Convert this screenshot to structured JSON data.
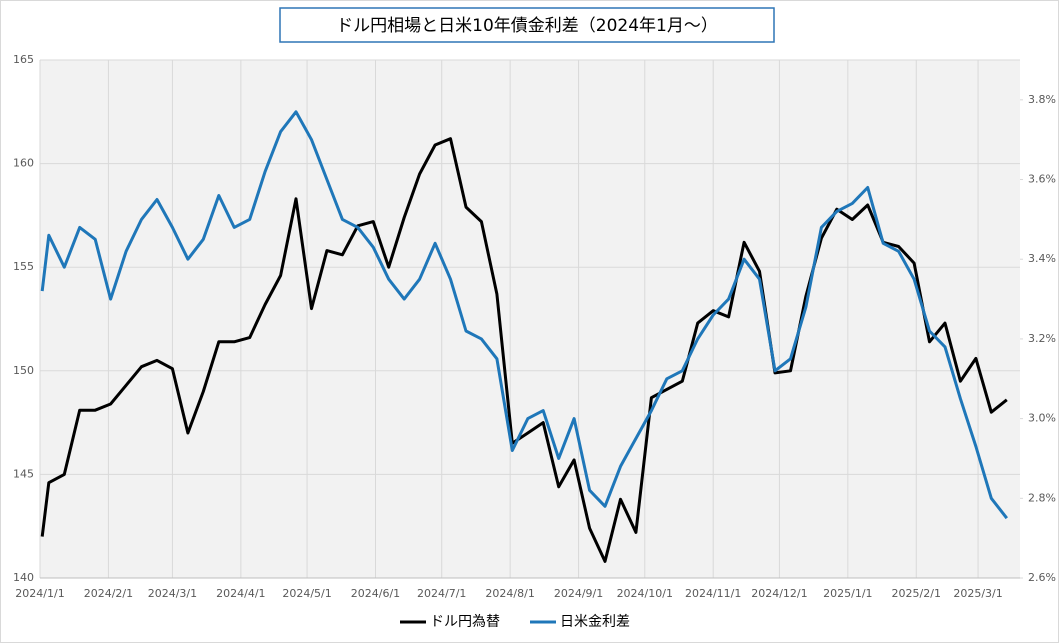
{
  "chart_data": {
    "type": "line",
    "title": "ドル円相場と日米10年債金利差（2024年1月～）",
    "x": [
      "2024-01-02",
      "2024-01-05",
      "2024-01-12",
      "2024-01-19",
      "2024-01-26",
      "2024-02-02",
      "2024-02-09",
      "2024-02-16",
      "2024-02-23",
      "2024-03-01",
      "2024-03-08",
      "2024-03-15",
      "2024-03-22",
      "2024-03-29",
      "2024-04-05",
      "2024-04-12",
      "2024-04-19",
      "2024-04-26",
      "2024-05-03",
      "2024-05-10",
      "2024-05-17",
      "2024-05-24",
      "2024-05-31",
      "2024-06-07",
      "2024-06-14",
      "2024-06-21",
      "2024-06-28",
      "2024-07-05",
      "2024-07-12",
      "2024-07-19",
      "2024-07-26",
      "2024-08-02",
      "2024-08-09",
      "2024-08-16",
      "2024-08-23",
      "2024-08-30",
      "2024-09-06",
      "2024-09-13",
      "2024-09-20",
      "2024-09-27",
      "2024-10-04",
      "2024-10-11",
      "2024-10-18",
      "2024-10-25",
      "2024-11-01",
      "2024-11-08",
      "2024-11-15",
      "2024-11-22",
      "2024-11-29",
      "2024-12-06",
      "2024-12-13",
      "2024-12-20",
      "2024-12-27",
      "2025-01-03",
      "2025-01-10",
      "2025-01-17",
      "2025-01-24",
      "2025-01-31",
      "2025-02-07",
      "2025-02-14",
      "2025-02-21",
      "2025-02-28",
      "2025-03-07",
      "2025-03-14"
    ],
    "series": [
      {
        "name": "ドル円為替",
        "color": "#000000",
        "axis": "y",
        "values": [
          142.0,
          144.6,
          145.0,
          148.1,
          148.1,
          148.4,
          149.3,
          150.2,
          150.5,
          150.1,
          147.0,
          149.0,
          151.4,
          151.4,
          151.6,
          153.2,
          154.6,
          158.3,
          153.0,
          155.8,
          155.6,
          157.0,
          157.2,
          155.0,
          157.4,
          159.5,
          160.9,
          161.2,
          157.9,
          157.2,
          153.7,
          146.5,
          147.0,
          147.5,
          144.4,
          145.7,
          142.4,
          140.8,
          143.8,
          142.2,
          148.7,
          149.1,
          149.5,
          152.3,
          152.9,
          152.6,
          156.2,
          154.8,
          149.9,
          150.0,
          153.6,
          156.4,
          157.8,
          157.3,
          158.0,
          156.2,
          156.0,
          155.2,
          151.4,
          152.3,
          149.5,
          150.6,
          148.0,
          148.6
        ]
      },
      {
        "name": "日米金利差",
        "color": "#1f77b9",
        "axis": "y2",
        "values": [
          3.32,
          3.46,
          3.38,
          3.48,
          3.45,
          3.3,
          3.42,
          3.5,
          3.55,
          3.48,
          3.4,
          3.45,
          3.56,
          3.48,
          3.5,
          3.62,
          3.72,
          3.77,
          3.7,
          3.6,
          3.5,
          3.48,
          3.43,
          3.35,
          3.3,
          3.35,
          3.44,
          3.35,
          3.22,
          3.2,
          3.15,
          2.92,
          3.0,
          3.02,
          2.9,
          3.0,
          2.82,
          2.78,
          2.88,
          2.95,
          3.02,
          3.1,
          3.12,
          3.2,
          3.26,
          3.3,
          3.4,
          3.35,
          3.12,
          3.15,
          3.28,
          3.48,
          3.52,
          3.54,
          3.58,
          3.44,
          3.42,
          3.35,
          3.22,
          3.18,
          3.05,
          2.93,
          2.8,
          2.75
        ]
      }
    ],
    "xlim": [
      "2024-01-01",
      "2025-03-20"
    ],
    "xticks": [
      {
        "value": "2024-01-01",
        "label": "2024/1/1"
      },
      {
        "value": "2024-02-01",
        "label": "2024/2/1"
      },
      {
        "value": "2024-03-01",
        "label": "2024/3/1"
      },
      {
        "value": "2024-04-01",
        "label": "2024/4/1"
      },
      {
        "value": "2024-05-01",
        "label": "2024/5/1"
      },
      {
        "value": "2024-06-01",
        "label": "2024/6/1"
      },
      {
        "value": "2024-07-01",
        "label": "2024/7/1"
      },
      {
        "value": "2024-08-01",
        "label": "2024/8/1"
      },
      {
        "value": "2024-09-01",
        "label": "2024/9/1"
      },
      {
        "value": "2024-10-01",
        "label": "2024/10/1"
      },
      {
        "value": "2024-11-01",
        "label": "2024/11/1"
      },
      {
        "value": "2024-12-01",
        "label": "2024/12/1"
      },
      {
        "value": "2025-01-01",
        "label": "2025/1/1"
      },
      {
        "value": "2025-02-01",
        "label": "2025/2/1"
      },
      {
        "value": "2025-03-01",
        "label": "2025/3/1"
      }
    ],
    "ylim": [
      140,
      165
    ],
    "yticks": [
      140,
      145,
      150,
      155,
      160,
      165
    ],
    "y2lim": [
      2.6,
      3.9
    ],
    "y2ticks": [
      {
        "value": 2.6,
        "label": "2.6%"
      },
      {
        "value": 2.8,
        "label": "2.8%"
      },
      {
        "value": 3.0,
        "label": "3.0%"
      },
      {
        "value": 3.2,
        "label": "3.2%"
      },
      {
        "value": 3.4,
        "label": "3.4%"
      },
      {
        "value": 3.6,
        "label": "3.6%"
      },
      {
        "value": 3.8,
        "label": "3.8%"
      }
    ],
    "grid": true,
    "legend": "bottom"
  }
}
